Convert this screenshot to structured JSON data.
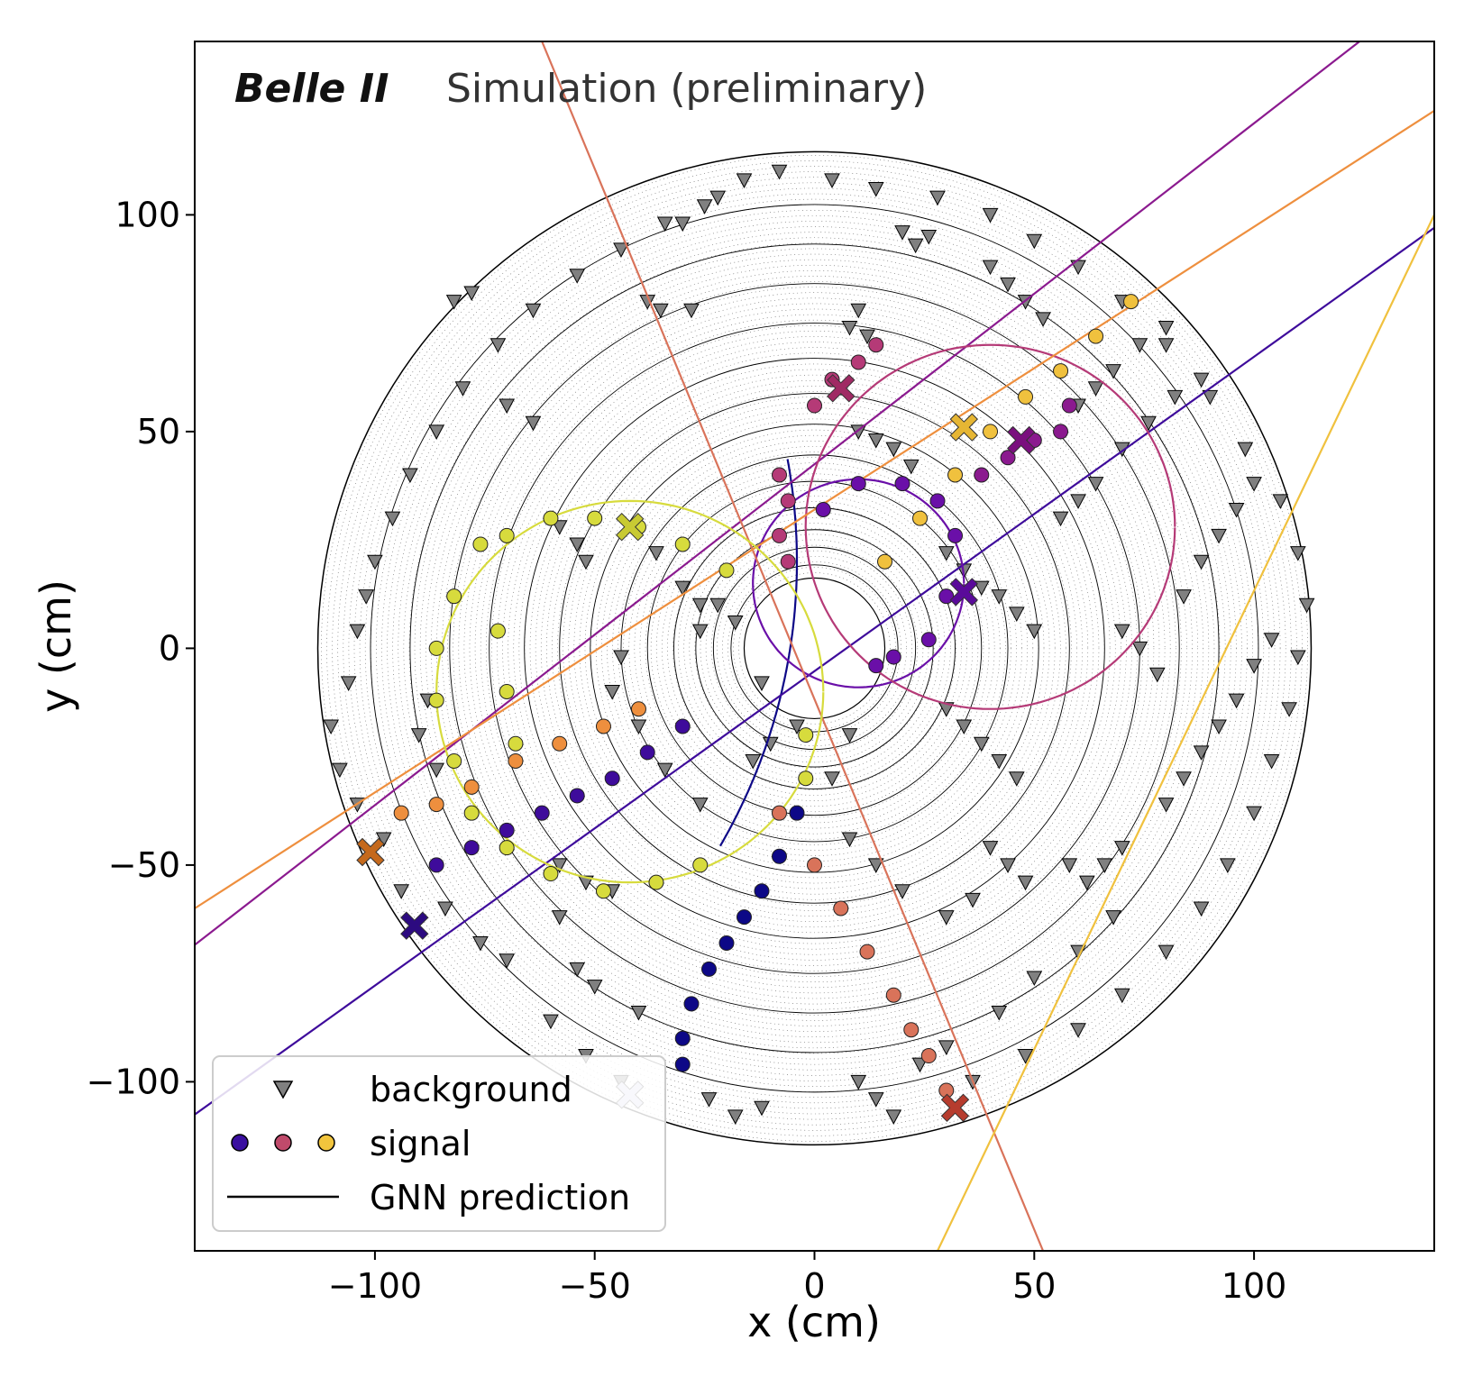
{
  "chart_data": {
    "type": "scatter",
    "title": "",
    "watermark": {
      "experiment": "Belle II",
      "label": "Simulation (preliminary)"
    },
    "xlabel": "x (cm)",
    "ylabel": "y (cm)",
    "xlim": [
      -141,
      141
    ],
    "ylim": [
      -139,
      140
    ],
    "xticks": [
      -100,
      -50,
      0,
      50,
      100
    ],
    "yticks": [
      -100,
      -50,
      0,
      50,
      100
    ],
    "xtick_labels": [
      "−100",
      "−50",
      "0",
      "50",
      "100"
    ],
    "ytick_labels": [
      "−100",
      "−50",
      "0",
      "50",
      "100"
    ],
    "grid": false,
    "detector": {
      "inner_radius": 16,
      "outer_radius": 113,
      "layer_radii": [
        19,
        23,
        27,
        32,
        38,
        44,
        51,
        58,
        66,
        74,
        83,
        92,
        101,
        113
      ]
    },
    "legend": {
      "position": "lower-left",
      "entries": [
        {
          "label": "background",
          "marker": "triangle-down",
          "color": "#808080"
        },
        {
          "label": "signal",
          "marker": "circles",
          "colors": [
            "#3a0fa0",
            "#c04a6b",
            "#f2c53d"
          ]
        },
        {
          "label": "GNN prediction",
          "marker": "line",
          "color": "#000000"
        }
      ]
    },
    "series": [
      {
        "color": "#0d0887",
        "track": {
          "cx": -136,
          "cy": 20,
          "r": 132,
          "t0": 0.18,
          "t1": -0.52
        },
        "hits": [
          [
            -4,
            -38
          ],
          [
            -8,
            -48
          ],
          [
            -12,
            -56
          ],
          [
            -16,
            -62
          ],
          [
            -20,
            -68
          ],
          [
            -24,
            -74
          ],
          [
            -28,
            -82
          ],
          [
            -30,
            -90
          ],
          [
            -30,
            -96
          ]
        ],
        "cross": [
          -42,
          -103
        ],
        "cross_color": "#d0d0e6"
      },
      {
        "color": "#3e0b9b",
        "track": {
          "line": [
            [
              -143,
              -109
            ],
            [
              141,
              97
            ]
          ]
        },
        "hits": [
          [
            -86,
            -50
          ],
          [
            -78,
            -46
          ],
          [
            -70,
            -42
          ],
          [
            -62,
            -38
          ],
          [
            -54,
            -34
          ],
          [
            -46,
            -30
          ],
          [
            -38,
            -24
          ],
          [
            -30,
            -18
          ]
        ],
        "cross": [
          -91,
          -64
        ],
        "cross_color": "#2c0a80"
      },
      {
        "color": "#6a0fa8",
        "track": {
          "cx": 10,
          "cy": 15,
          "r": 24,
          "t0": 0,
          "t1": 6.28
        },
        "hits": [
          [
            2,
            32
          ],
          [
            10,
            38
          ],
          [
            20,
            38
          ],
          [
            28,
            34
          ],
          [
            32,
            26
          ],
          [
            30,
            12
          ],
          [
            26,
            2
          ],
          [
            18,
            -2
          ],
          [
            14,
            -4
          ]
        ],
        "cross": [
          34,
          13
        ],
        "cross_color": "#5a0a9a"
      },
      {
        "color": "#8b1a8f",
        "track": {
          "line": [
            [
              -143,
              -70
            ],
            [
              124,
              140
            ]
          ]
        },
        "hits": [
          [
            38,
            40
          ],
          [
            44,
            44
          ],
          [
            50,
            48
          ],
          [
            56,
            50
          ],
          [
            58,
            56
          ]
        ],
        "cross": [
          47,
          48
        ],
        "cross_color": "#7a0f7e"
      },
      {
        "color": "#b53a77",
        "track": {
          "cx": 40,
          "cy": 28,
          "r": 42,
          "t0": 0,
          "t1": 6.28
        },
        "hits": [
          [
            -8,
            40
          ],
          [
            -6,
            34
          ],
          [
            -8,
            26
          ],
          [
            -6,
            20
          ],
          [
            0,
            56
          ],
          [
            4,
            62
          ],
          [
            10,
            66
          ],
          [
            14,
            70
          ]
        ],
        "cross": [
          6,
          60
        ],
        "cross_color": "#a02a64"
      },
      {
        "color": "#d9735a",
        "track": {
          "line": [
            [
              -62,
              140
            ],
            [
              52,
              -139
            ]
          ]
        },
        "hits": [
          [
            -8,
            -38
          ],
          [
            0,
            -50
          ],
          [
            6,
            -60
          ],
          [
            12,
            -70
          ],
          [
            18,
            -80
          ],
          [
            22,
            -88
          ],
          [
            26,
            -94
          ],
          [
            30,
            -102
          ]
        ],
        "cross": [
          32,
          -106
        ],
        "cross_color": "#b63c2e"
      },
      {
        "color": "#ee8f3e",
        "track": {
          "line": [
            [
              -141,
              -60
            ],
            [
              141,
              124
            ]
          ]
        },
        "hits": [
          [
            -94,
            -38
          ],
          [
            -86,
            -36
          ],
          [
            -78,
            -32
          ],
          [
            -68,
            -26
          ],
          [
            -58,
            -22
          ],
          [
            -48,
            -18
          ],
          [
            -40,
            -14
          ]
        ],
        "cross": [
          -101,
          -47
        ],
        "cross_color": "#c5691c"
      },
      {
        "color": "#f0c13e",
        "track": {
          "line": [
            [
              28,
              -139
            ],
            [
              141,
              100
            ]
          ]
        },
        "hits": [
          [
            16,
            20
          ],
          [
            24,
            30
          ],
          [
            32,
            40
          ],
          [
            40,
            50
          ],
          [
            48,
            58
          ],
          [
            56,
            64
          ],
          [
            64,
            72
          ],
          [
            72,
            80
          ]
        ],
        "cross": [
          34,
          51
        ],
        "cross_color": "#e6b634"
      },
      {
        "color": "#d7db3d",
        "track": {
          "cx": -42,
          "cy": -10,
          "r": 44,
          "t0": 0,
          "t1": 6.28
        },
        "hits": [
          [
            -76,
            24
          ],
          [
            -70,
            26
          ],
          [
            -60,
            30
          ],
          [
            -50,
            30
          ],
          [
            -40,
            28
          ],
          [
            -30,
            24
          ],
          [
            -20,
            18
          ],
          [
            -82,
            12
          ],
          [
            -86,
            0
          ],
          [
            -86,
            -12
          ],
          [
            -82,
            -26
          ],
          [
            -78,
            -38
          ],
          [
            -70,
            -46
          ],
          [
            -60,
            -52
          ],
          [
            -48,
            -56
          ],
          [
            -36,
            -54
          ],
          [
            -26,
            -50
          ],
          [
            -72,
            4
          ],
          [
            -70,
            -10
          ],
          [
            -68,
            -22
          ],
          [
            -2,
            -20
          ],
          [
            -2,
            -30
          ]
        ],
        "cross": [
          -42,
          28
        ],
        "cross_color": "#c8ca33"
      }
    ],
    "background": [
      [
        -25,
        102
      ],
      [
        -22,
        104
      ],
      [
        -30,
        98
      ],
      [
        20,
        96
      ],
      [
        23,
        93
      ],
      [
        26,
        95
      ],
      [
        -38,
        80
      ],
      [
        -35,
        78
      ],
      [
        -28,
        78
      ],
      [
        8,
        74
      ],
      [
        10,
        78
      ],
      [
        12,
        72
      ],
      [
        -82,
        80
      ],
      [
        -78,
        82
      ],
      [
        -70,
        56
      ],
      [
        -64,
        52
      ],
      [
        -88,
        -12
      ],
      [
        -90,
        -20
      ],
      [
        -86,
        -28
      ],
      [
        -58,
        28
      ],
      [
        -54,
        24
      ],
      [
        -52,
        20
      ],
      [
        -36,
        22
      ],
      [
        -30,
        14
      ],
      [
        -26,
        10
      ],
      [
        -44,
        -2
      ],
      [
        -46,
        -10
      ],
      [
        -40,
        -18
      ],
      [
        -34,
        -28
      ],
      [
        -26,
        -36
      ],
      [
        -58,
        -50
      ],
      [
        -52,
        -54
      ],
      [
        -46,
        -56
      ],
      [
        -58,
        -62
      ],
      [
        -54,
        -74
      ],
      [
        -50,
        -78
      ],
      [
        -40,
        -84
      ],
      [
        -60,
        -86
      ],
      [
        -52,
        -94
      ],
      [
        -44,
        -100
      ],
      [
        -24,
        -104
      ],
      [
        -18,
        -108
      ],
      [
        -12,
        -106
      ],
      [
        10,
        -100
      ],
      [
        14,
        -104
      ],
      [
        18,
        -108
      ],
      [
        24,
        -96
      ],
      [
        30,
        -92
      ],
      [
        42,
        -84
      ],
      [
        50,
        -76
      ],
      [
        60,
        -70
      ],
      [
        68,
        -62
      ],
      [
        58,
        -50
      ],
      [
        62,
        -54
      ],
      [
        66,
        -50
      ],
      [
        70,
        -46
      ],
      [
        80,
        -36
      ],
      [
        84,
        -30
      ],
      [
        88,
        -24
      ],
      [
        92,
        -18
      ],
      [
        96,
        -12
      ],
      [
        100,
        -4
      ],
      [
        104,
        2
      ],
      [
        70,
        4
      ],
      [
        74,
        0
      ],
      [
        78,
        -6
      ],
      [
        84,
        12
      ],
      [
        88,
        20
      ],
      [
        92,
        26
      ],
      [
        96,
        32
      ],
      [
        100,
        38
      ],
      [
        56,
        30
      ],
      [
        60,
        34
      ],
      [
        64,
        38
      ],
      [
        70,
        46
      ],
      [
        76,
        52
      ],
      [
        82,
        58
      ],
      [
        88,
        62
      ],
      [
        60,
        56
      ],
      [
        64,
        60
      ],
      [
        68,
        64
      ],
      [
        74,
        70
      ],
      [
        80,
        74
      ],
      [
        40,
        88
      ],
      [
        44,
        84
      ],
      [
        48,
        80
      ],
      [
        52,
        76
      ],
      [
        10,
        50
      ],
      [
        14,
        48
      ],
      [
        18,
        46
      ],
      [
        22,
        42
      ],
      [
        30,
        22
      ],
      [
        34,
        18
      ],
      [
        38,
        14
      ],
      [
        42,
        12
      ],
      [
        46,
        8
      ],
      [
        50,
        4
      ],
      [
        30,
        -14
      ],
      [
        34,
        -18
      ],
      [
        38,
        -22
      ],
      [
        42,
        -26
      ],
      [
        46,
        -30
      ],
      [
        40,
        -46
      ],
      [
        44,
        -50
      ],
      [
        48,
        -54
      ],
      [
        36,
        -58
      ],
      [
        30,
        -62
      ],
      [
        20,
        -56
      ],
      [
        14,
        -50
      ],
      [
        8,
        -44
      ],
      [
        4,
        -30
      ],
      [
        8,
        -20
      ],
      [
        -4,
        -18
      ],
      [
        -10,
        -22
      ],
      [
        -14,
        -26
      ],
      [
        -18,
        6
      ],
      [
        -22,
        10
      ],
      [
        -26,
        4
      ],
      [
        -12,
        -8
      ],
      [
        -70,
        -72
      ],
      [
        -76,
        -68
      ],
      [
        -84,
        -60
      ],
      [
        -94,
        -56
      ],
      [
        -98,
        -44
      ],
      [
        -104,
        -36
      ],
      [
        -108,
        -28
      ],
      [
        -110,
        -18
      ],
      [
        -106,
        -8
      ],
      [
        -104,
        4
      ],
      [
        -102,
        12
      ],
      [
        -100,
        20
      ],
      [
        -96,
        30
      ],
      [
        -92,
        40
      ],
      [
        -86,
        50
      ],
      [
        -80,
        60
      ],
      [
        -72,
        70
      ],
      [
        -64,
        78
      ],
      [
        -54,
        86
      ],
      [
        -44,
        92
      ],
      [
        -34,
        98
      ],
      [
        -16,
        108
      ],
      [
        -8,
        110
      ],
      [
        4,
        108
      ],
      [
        14,
        106
      ],
      [
        28,
        104
      ],
      [
        40,
        100
      ],
      [
        50,
        94
      ],
      [
        60,
        88
      ],
      [
        70,
        80
      ],
      [
        80,
        70
      ],
      [
        90,
        58
      ],
      [
        98,
        46
      ],
      [
        106,
        34
      ],
      [
        110,
        22
      ],
      [
        112,
        10
      ],
      [
        110,
        -2
      ],
      [
        108,
        -14
      ],
      [
        104,
        -26
      ],
      [
        100,
        -38
      ],
      [
        94,
        -50
      ],
      [
        88,
        -60
      ],
      [
        80,
        -70
      ],
      [
        70,
        -80
      ],
      [
        60,
        -88
      ],
      [
        48,
        -94
      ],
      [
        36,
        -100
      ]
    ]
  }
}
